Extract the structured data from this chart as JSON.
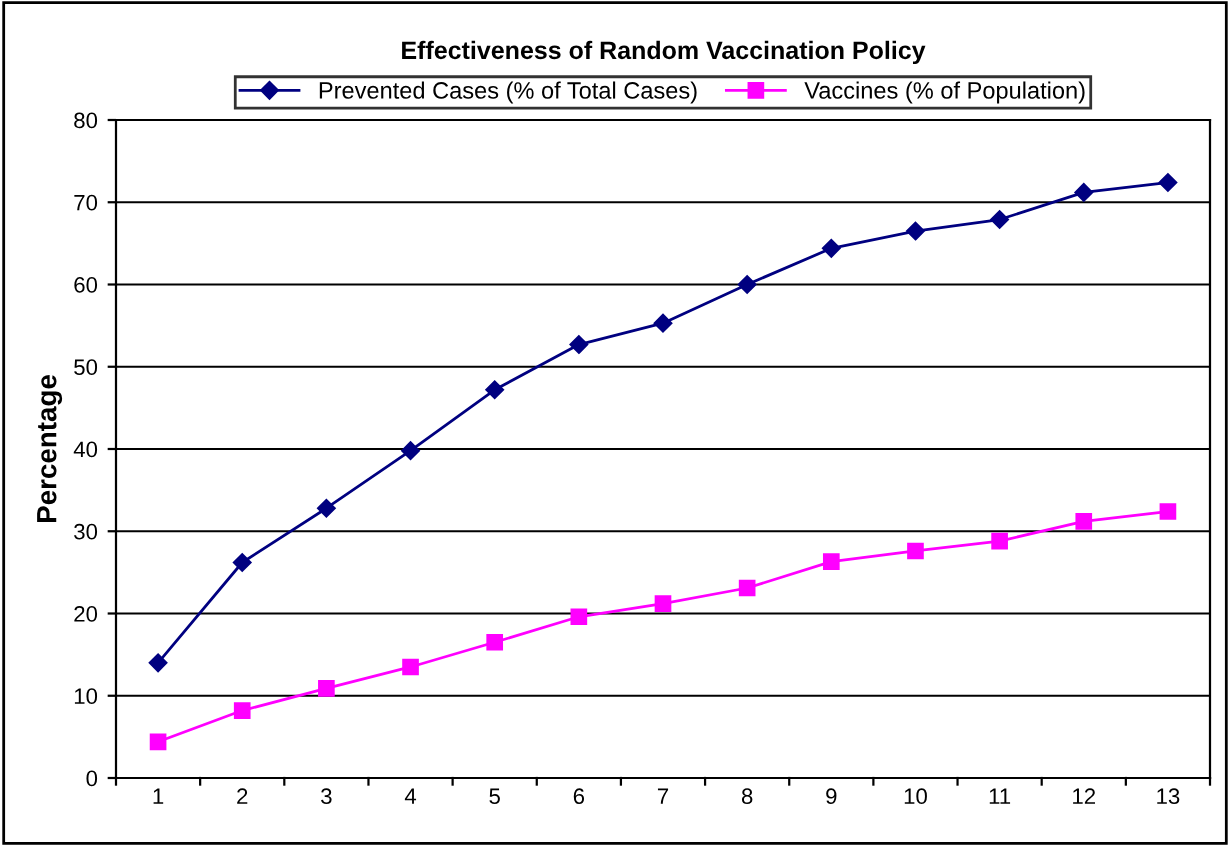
{
  "chart_data": {
    "type": "line",
    "title": "Effectiveness of Random Vaccination Policy",
    "ylabel": "Percentage",
    "categories": [
      "1",
      "2",
      "3",
      "4",
      "5",
      "6",
      "7",
      "8",
      "9",
      "10",
      "11",
      "12",
      "13"
    ],
    "series": [
      {
        "name": "Prevented Cases (% of Total Cases)",
        "color": "#000080",
        "marker": "diamond",
        "values": [
          14,
          26.2,
          32.8,
          39.8,
          47.2,
          52.7,
          55.3,
          60,
          64.4,
          66.5,
          67.9,
          71.2,
          72.4
        ]
      },
      {
        "name": "Vaccines (% of Population)",
        "color": "#ff00ff",
        "marker": "square",
        "values": [
          4.4,
          8.2,
          10.9,
          13.5,
          16.5,
          19.6,
          21.2,
          23.1,
          26.3,
          27.6,
          28.8,
          31.2,
          32.4
        ]
      }
    ],
    "ylim": [
      0,
      80
    ],
    "yticks": [
      0,
      10,
      20,
      30,
      40,
      50,
      60,
      70,
      80
    ],
    "grid": "y",
    "legend": "top",
    "line_style": "solid"
  }
}
